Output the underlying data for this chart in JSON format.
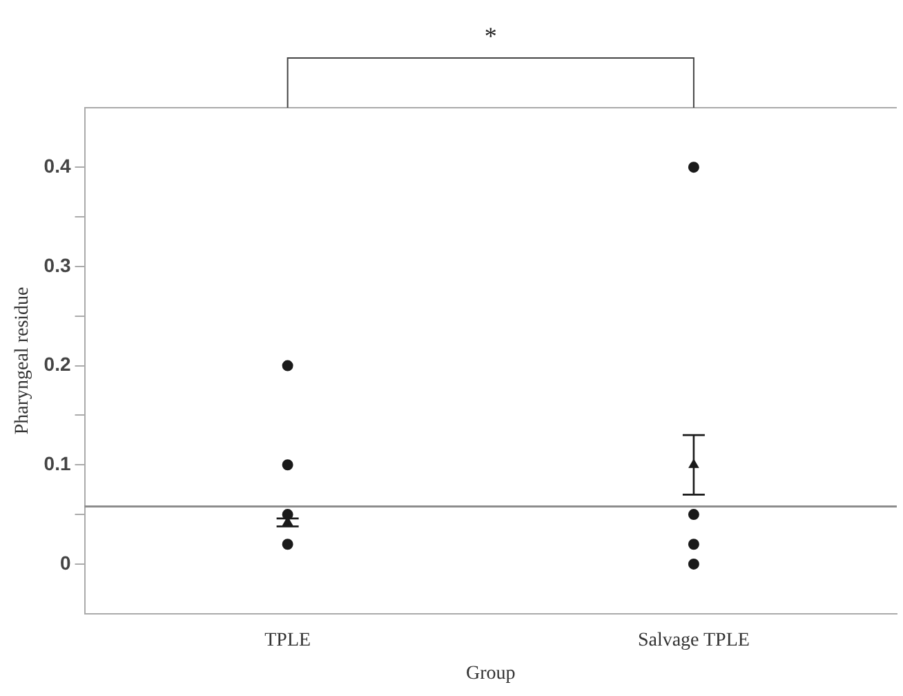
{
  "chart_data": {
    "type": "scatter",
    "xlabel": "Group",
    "ylabel": "Pharyngeal residue",
    "categories": [
      "TPLE",
      "Salvage TPLE"
    ],
    "ylim": [
      -0.05,
      0.46
    ],
    "yticks": [
      0,
      {
        "value": 0.05,
        "label": null
      },
      0.1,
      {
        "value": 0.15,
        "label": null
      },
      0.2,
      {
        "value": 0.25,
        "label": null
      },
      0.3,
      {
        "value": 0.35,
        "label": null
      },
      0.4
    ],
    "grid": false,
    "legend": false,
    "marker": "circle",
    "series": [
      {
        "color": "#1a1a1a",
        "x": [
          "TPLE",
          "TPLE",
          "TPLE",
          "TPLE",
          "Salvage TPLE",
          "Salvage TPLE",
          "Salvage TPLE",
          "Salvage TPLE"
        ],
        "values": [
          0.2,
          0.1,
          0.05,
          0.02,
          0.4,
          0.05,
          0.02,
          0
        ]
      },
      {
        "color": "#1a1a1a",
        "marker": "triangle",
        "x": [
          "TPLE",
          "Salvage TPLE"
        ],
        "values": [
          0.042,
          0.1
        ],
        "errors": [
          [
            0.038,
            0.046
          ],
          [
            0.07,
            0.13
          ]
        ]
      }
    ],
    "ref_lines": [
      {
        "axis": "y",
        "value": 0.058,
        "color": "#8c8c8c"
      }
    ],
    "annotations": [
      "*"
    ]
  }
}
